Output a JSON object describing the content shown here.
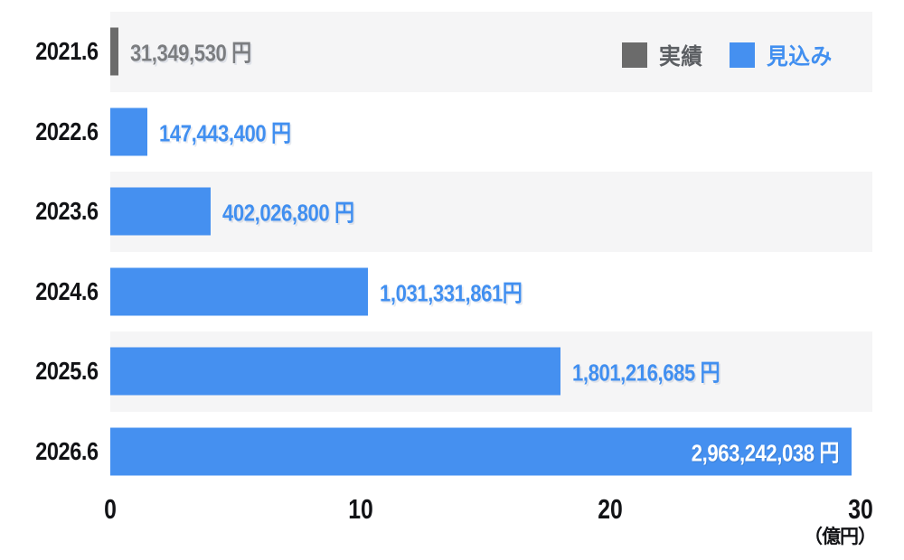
{
  "colors": {
    "actual": "#6B6B6B",
    "forecast": "#4590F0",
    "actual_label": "#7B7D80",
    "forecast_label": "#418FF0",
    "inside_label": "#FFFFFF",
    "row_band": "#F5F5F6",
    "axis_text": "#121316",
    "legend_actual_text": "#5C5F63",
    "legend_forecast_text": "#418FF0"
  },
  "chart_data": {
    "type": "bar",
    "orientation": "horizontal",
    "title": "",
    "xlabel_unit": "（億円）",
    "xlim": [
      0,
      30
    ],
    "x_ticks": [
      0,
      10,
      20,
      30
    ],
    "grid": false,
    "legend_position": "top-right",
    "legend": [
      {
        "id": "actual",
        "label": "実績"
      },
      {
        "id": "forecast",
        "label": "見込み"
      }
    ],
    "categories": [
      "2021.6",
      "2022.6",
      "2023.6",
      "2024.6",
      "2025.6",
      "2026.6"
    ],
    "rows": [
      {
        "category": "2021.6",
        "value_yen": 31349530,
        "value_oku": 0.31,
        "label": "31,349,530 円",
        "series": "actual",
        "label_position": "outside"
      },
      {
        "category": "2022.6",
        "value_yen": 147443400,
        "value_oku": 1.47,
        "label": "147,443,400 円",
        "series": "forecast",
        "label_position": "outside"
      },
      {
        "category": "2023.6",
        "value_yen": 402026800,
        "value_oku": 4.02,
        "label": "402,026,800 円",
        "series": "forecast",
        "label_position": "outside"
      },
      {
        "category": "2024.6",
        "value_yen": 1031331861,
        "value_oku": 10.31,
        "label": "1,031,331,861円",
        "series": "forecast",
        "label_position": "outside"
      },
      {
        "category": "2025.6",
        "value_yen": 1801216685,
        "value_oku": 18.01,
        "label": "1,801,216,685 円",
        "series": "forecast",
        "label_position": "outside"
      },
      {
        "category": "2026.6",
        "value_yen": 2963242038,
        "value_oku": 29.63,
        "label": "2,963,242,038 円",
        "series": "forecast",
        "label_position": "inside"
      }
    ]
  }
}
